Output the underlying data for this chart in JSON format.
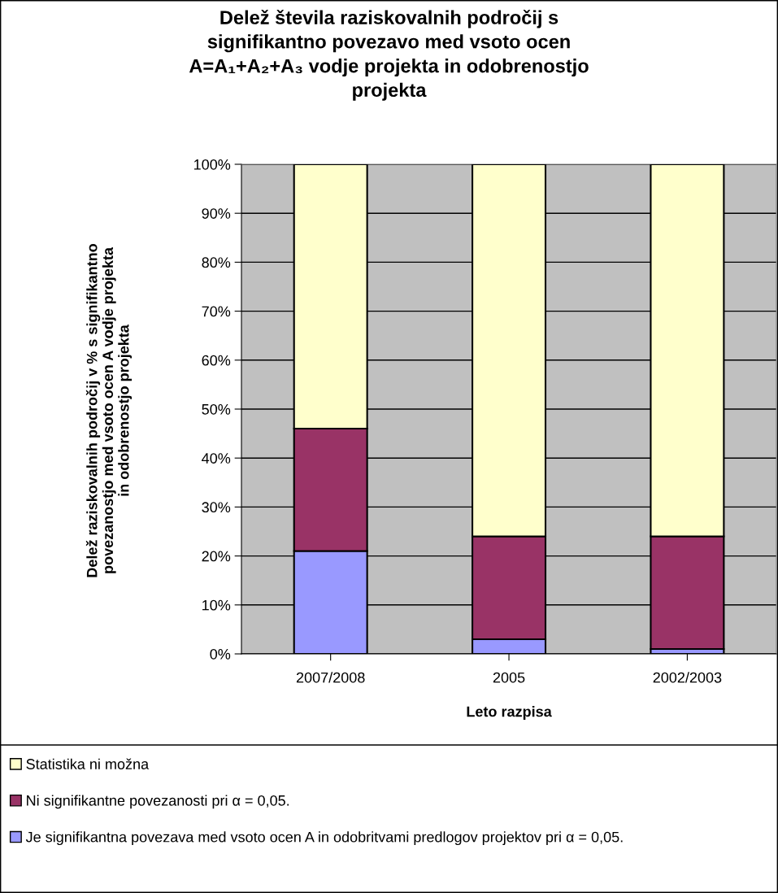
{
  "chart_data": {
    "type": "bar",
    "stacked": true,
    "title": "Delež števila raziskovalnih področij s\nsignifikantno povezavo med vsoto ocen\nA=A₁+A₂+A₃ vodje projekta in odobrenostjo\nprojekta",
    "xlabel": "Leto razpisa",
    "ylabel": "Delež raziskovalnih področij v % s signifikantno\npovezanostjo med vsoto ocen A vodje projekta\nin odobrenostjo projekta",
    "categories": [
      "2007/2008",
      "2005",
      "2002/2003"
    ],
    "series": [
      {
        "name": "Je signifikantna povezava med vsoto ocen A in odobritvami predlogov projektov pri α = 0,05.",
        "color": "#9999ff",
        "values": [
          21,
          3,
          1
        ]
      },
      {
        "name": "Ni signifikantne povezanosti pri α = 0,05.",
        "color": "#993366",
        "values": [
          25,
          21,
          23
        ]
      },
      {
        "name": "Statistika ni možna",
        "color": "#ffffcc",
        "values": [
          54,
          76,
          76
        ]
      }
    ],
    "ylim": [
      0,
      100
    ],
    "yticks": [
      {
        "value": 0,
        "label": "0%"
      },
      {
        "value": 10,
        "label": "10%"
      },
      {
        "value": 20,
        "label": "20%"
      },
      {
        "value": 30,
        "label": "30%"
      },
      {
        "value": 40,
        "label": "40%"
      },
      {
        "value": 50,
        "label": "50%"
      },
      {
        "value": 60,
        "label": "60%"
      },
      {
        "value": 70,
        "label": "70%"
      },
      {
        "value": 80,
        "label": "80%"
      },
      {
        "value": 90,
        "label": "90%"
      },
      {
        "value": 100,
        "label": "100%"
      }
    ],
    "grid": "y",
    "legend": "bottom"
  }
}
